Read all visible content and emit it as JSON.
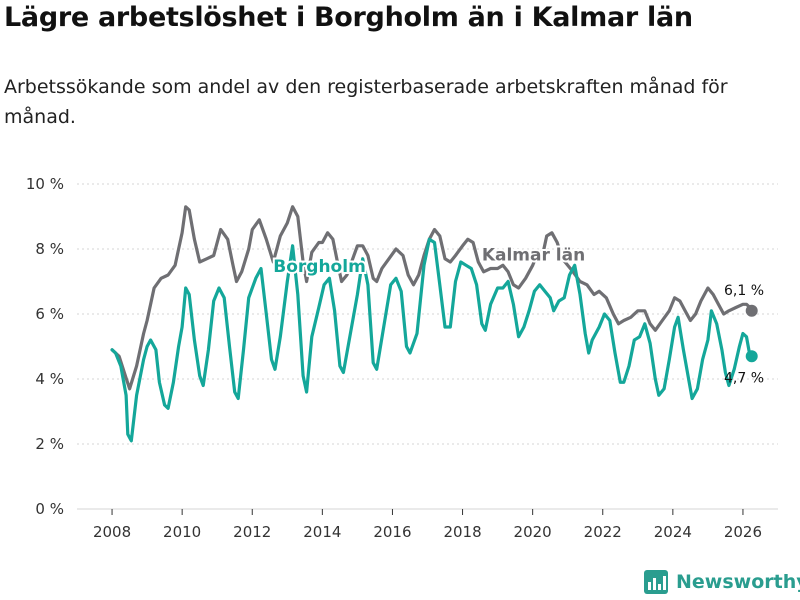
{
  "title": "Lägre arbetslöshet i Borgholm än i Kalmar län",
  "subtitle": "Arbetssökande som andel av den registerbaserade arbetskraften månad för månad.",
  "brand": "Newsworthy",
  "colors": {
    "borgholm": "#14a79a",
    "kalmar": "#6f6f73",
    "grid": "#d6d6d6",
    "axis": "#333333"
  },
  "chart_data": {
    "type": "line",
    "title": "Lägre arbetslöshet i Borgholm än i Kalmar län",
    "ylim": [
      0,
      10
    ],
    "xlim": [
      2007,
      2027
    ],
    "y_ticks": [
      0,
      2,
      4,
      6,
      8,
      10
    ],
    "y_tick_labels": [
      "0 %",
      "2 %",
      "4 %",
      "6 %",
      "8 %",
      "10 %"
    ],
    "x_ticks": [
      2008,
      2010,
      2012,
      2014,
      2016,
      2018,
      2020,
      2022,
      2024,
      2026
    ],
    "x_tick_labels": [
      "2008",
      "2010",
      "2012",
      "2014",
      "2016",
      "2018",
      "2020",
      "2022",
      "2024",
      "2026"
    ],
    "grid": true,
    "series": [
      {
        "name": "Kalmar län",
        "label": "Kalmar län",
        "end_label": "6,1 %",
        "last_value": 6.1,
        "last_x": 2026.25,
        "points": [
          [
            2008.0,
            4.9
          ],
          [
            2008.2,
            4.7
          ],
          [
            2008.35,
            4.2
          ],
          [
            2008.5,
            3.7
          ],
          [
            2008.7,
            4.4
          ],
          [
            2008.9,
            5.4
          ],
          [
            2009.0,
            5.8
          ],
          [
            2009.2,
            6.8
          ],
          [
            2009.4,
            7.1
          ],
          [
            2009.6,
            7.2
          ],
          [
            2009.8,
            7.5
          ],
          [
            2010.0,
            8.5
          ],
          [
            2010.1,
            9.3
          ],
          [
            2010.2,
            9.2
          ],
          [
            2010.35,
            8.3
          ],
          [
            2010.5,
            7.6
          ],
          [
            2010.7,
            7.7
          ],
          [
            2010.9,
            7.8
          ],
          [
            2011.1,
            8.6
          ],
          [
            2011.3,
            8.3
          ],
          [
            2011.45,
            7.5
          ],
          [
            2011.55,
            7.0
          ],
          [
            2011.7,
            7.3
          ],
          [
            2011.9,
            8.0
          ],
          [
            2012.0,
            8.6
          ],
          [
            2012.2,
            8.9
          ],
          [
            2012.4,
            8.3
          ],
          [
            2012.6,
            7.6
          ],
          [
            2012.8,
            8.4
          ],
          [
            2013.0,
            8.8
          ],
          [
            2013.15,
            9.3
          ],
          [
            2013.3,
            9.0
          ],
          [
            2013.45,
            7.6
          ],
          [
            2013.55,
            7.0
          ],
          [
            2013.7,
            7.9
          ],
          [
            2013.9,
            8.2
          ],
          [
            2014.0,
            8.2
          ],
          [
            2014.15,
            8.5
          ],
          [
            2014.3,
            8.3
          ],
          [
            2014.45,
            7.5
          ],
          [
            2014.55,
            7.0
          ],
          [
            2014.7,
            7.2
          ],
          [
            2014.9,
            7.8
          ],
          [
            2015.0,
            8.1
          ],
          [
            2015.15,
            8.1
          ],
          [
            2015.3,
            7.8
          ],
          [
            2015.45,
            7.1
          ],
          [
            2015.55,
            7.0
          ],
          [
            2015.7,
            7.4
          ],
          [
            2015.9,
            7.7
          ],
          [
            2016.1,
            8.0
          ],
          [
            2016.3,
            7.8
          ],
          [
            2016.45,
            7.2
          ],
          [
            2016.6,
            6.9
          ],
          [
            2016.75,
            7.2
          ],
          [
            2016.9,
            7.8
          ],
          [
            2017.05,
            8.3
          ],
          [
            2017.2,
            8.6
          ],
          [
            2017.35,
            8.4
          ],
          [
            2017.5,
            7.7
          ],
          [
            2017.65,
            7.6
          ],
          [
            2017.8,
            7.8
          ],
          [
            2018.0,
            8.1
          ],
          [
            2018.15,
            8.3
          ],
          [
            2018.3,
            8.2
          ],
          [
            2018.45,
            7.6
          ],
          [
            2018.6,
            7.3
          ],
          [
            2018.8,
            7.4
          ],
          [
            2019.0,
            7.4
          ],
          [
            2019.15,
            7.5
          ],
          [
            2019.3,
            7.3
          ],
          [
            2019.45,
            6.9
          ],
          [
            2019.6,
            6.8
          ],
          [
            2019.8,
            7.1
          ],
          [
            2020.0,
            7.5
          ],
          [
            2020.15,
            7.9
          ],
          [
            2020.3,
            7.9
          ],
          [
            2020.4,
            8.4
          ],
          [
            2020.55,
            8.5
          ],
          [
            2020.7,
            8.2
          ],
          [
            2020.85,
            7.7
          ],
          [
            2021.0,
            7.5
          ],
          [
            2021.15,
            7.3
          ],
          [
            2021.35,
            7.0
          ],
          [
            2021.55,
            6.9
          ],
          [
            2021.75,
            6.6
          ],
          [
            2021.9,
            6.7
          ],
          [
            2022.1,
            6.5
          ],
          [
            2022.3,
            6.0
          ],
          [
            2022.45,
            5.7
          ],
          [
            2022.6,
            5.8
          ],
          [
            2022.8,
            5.9
          ],
          [
            2023.0,
            6.1
          ],
          [
            2023.2,
            6.1
          ],
          [
            2023.35,
            5.7
          ],
          [
            2023.5,
            5.5
          ],
          [
            2023.7,
            5.8
          ],
          [
            2023.9,
            6.1
          ],
          [
            2024.05,
            6.5
          ],
          [
            2024.2,
            6.4
          ],
          [
            2024.35,
            6.1
          ],
          [
            2024.5,
            5.8
          ],
          [
            2024.65,
            6.0
          ],
          [
            2024.8,
            6.4
          ],
          [
            2025.0,
            6.8
          ],
          [
            2025.15,
            6.6
          ],
          [
            2025.3,
            6.3
          ],
          [
            2025.45,
            6.0
          ],
          [
            2025.6,
            6.1
          ],
          [
            2025.8,
            6.2
          ],
          [
            2026.0,
            6.3
          ],
          [
            2026.1,
            6.3
          ],
          [
            2026.2,
            6.2
          ]
        ]
      },
      {
        "name": "Borgholm",
        "label": "Borgholm",
        "end_label": "4,7 %",
        "last_value": 4.7,
        "last_x": 2026.25,
        "points": [
          [
            2008.0,
            4.9
          ],
          [
            2008.1,
            4.8
          ],
          [
            2008.25,
            4.4
          ],
          [
            2008.4,
            3.5
          ],
          [
            2008.45,
            2.3
          ],
          [
            2008.55,
            2.1
          ],
          [
            2008.7,
            3.5
          ],
          [
            2008.9,
            4.6
          ],
          [
            2009.0,
            5.0
          ],
          [
            2009.1,
            5.2
          ],
          [
            2009.25,
            4.9
          ],
          [
            2009.35,
            3.9
          ],
          [
            2009.5,
            3.2
          ],
          [
            2009.6,
            3.1
          ],
          [
            2009.75,
            3.9
          ],
          [
            2009.9,
            5.0
          ],
          [
            2010.0,
            5.6
          ],
          [
            2010.1,
            6.8
          ],
          [
            2010.2,
            6.6
          ],
          [
            2010.35,
            5.2
          ],
          [
            2010.5,
            4.1
          ],
          [
            2010.6,
            3.8
          ],
          [
            2010.75,
            4.9
          ],
          [
            2010.9,
            6.4
          ],
          [
            2011.05,
            6.8
          ],
          [
            2011.2,
            6.5
          ],
          [
            2011.35,
            5.0
          ],
          [
            2011.5,
            3.6
          ],
          [
            2011.6,
            3.4
          ],
          [
            2011.75,
            4.9
          ],
          [
            2011.9,
            6.5
          ],
          [
            2012.1,
            7.1
          ],
          [
            2012.25,
            7.4
          ],
          [
            2012.4,
            6.0
          ],
          [
            2012.55,
            4.6
          ],
          [
            2012.65,
            4.3
          ],
          [
            2012.8,
            5.3
          ],
          [
            2013.0,
            7.0
          ],
          [
            2013.15,
            8.1
          ],
          [
            2013.3,
            6.6
          ],
          [
            2013.45,
            4.1
          ],
          [
            2013.55,
            3.6
          ],
          [
            2013.7,
            5.3
          ],
          [
            2013.9,
            6.2
          ],
          [
            2014.05,
            6.9
          ],
          [
            2014.2,
            7.1
          ],
          [
            2014.35,
            6.1
          ],
          [
            2014.5,
            4.4
          ],
          [
            2014.6,
            4.2
          ],
          [
            2014.8,
            5.4
          ],
          [
            2015.0,
            6.6
          ],
          [
            2015.15,
            7.7
          ],
          [
            2015.3,
            6.9
          ],
          [
            2015.45,
            4.5
          ],
          [
            2015.55,
            4.3
          ],
          [
            2015.75,
            5.6
          ],
          [
            2015.95,
            6.9
          ],
          [
            2016.1,
            7.1
          ],
          [
            2016.25,
            6.7
          ],
          [
            2016.4,
            5.0
          ],
          [
            2016.5,
            4.8
          ],
          [
            2016.7,
            5.4
          ],
          [
            2016.9,
            7.5
          ],
          [
            2017.05,
            8.3
          ],
          [
            2017.2,
            8.2
          ],
          [
            2017.35,
            6.9
          ],
          [
            2017.5,
            5.6
          ],
          [
            2017.65,
            5.6
          ],
          [
            2017.8,
            7.0
          ],
          [
            2017.95,
            7.6
          ],
          [
            2018.1,
            7.5
          ],
          [
            2018.25,
            7.4
          ],
          [
            2018.4,
            6.9
          ],
          [
            2018.55,
            5.7
          ],
          [
            2018.65,
            5.5
          ],
          [
            2018.8,
            6.3
          ],
          [
            2019.0,
            6.8
          ],
          [
            2019.15,
            6.8
          ],
          [
            2019.3,
            7.0
          ],
          [
            2019.45,
            6.3
          ],
          [
            2019.6,
            5.3
          ],
          [
            2019.75,
            5.6
          ],
          [
            2019.9,
            6.1
          ],
          [
            2020.05,
            6.7
          ],
          [
            2020.2,
            6.9
          ],
          [
            2020.35,
            6.7
          ],
          [
            2020.5,
            6.5
          ],
          [
            2020.6,
            6.1
          ],
          [
            2020.75,
            6.4
          ],
          [
            2020.9,
            6.5
          ],
          [
            2021.05,
            7.2
          ],
          [
            2021.2,
            7.5
          ],
          [
            2021.35,
            6.6
          ],
          [
            2021.5,
            5.4
          ],
          [
            2021.6,
            4.8
          ],
          [
            2021.7,
            5.2
          ],
          [
            2021.9,
            5.6
          ],
          [
            2022.05,
            6.0
          ],
          [
            2022.2,
            5.8
          ],
          [
            2022.35,
            4.8
          ],
          [
            2022.5,
            3.9
          ],
          [
            2022.6,
            3.9
          ],
          [
            2022.75,
            4.4
          ],
          [
            2022.9,
            5.2
          ],
          [
            2023.05,
            5.3
          ],
          [
            2023.2,
            5.7
          ],
          [
            2023.35,
            5.1
          ],
          [
            2023.5,
            4.0
          ],
          [
            2023.6,
            3.5
          ],
          [
            2023.75,
            3.7
          ],
          [
            2023.9,
            4.6
          ],
          [
            2024.05,
            5.6
          ],
          [
            2024.15,
            5.9
          ],
          [
            2024.3,
            4.9
          ],
          [
            2024.45,
            4.0
          ],
          [
            2024.55,
            3.4
          ],
          [
            2024.7,
            3.7
          ],
          [
            2024.85,
            4.6
          ],
          [
            2025.0,
            5.2
          ],
          [
            2025.1,
            6.1
          ],
          [
            2025.25,
            5.7
          ],
          [
            2025.4,
            4.9
          ],
          [
            2025.5,
            4.2
          ],
          [
            2025.6,
            3.8
          ],
          [
            2025.75,
            4.3
          ],
          [
            2025.9,
            5.0
          ],
          [
            2026.0,
            5.4
          ],
          [
            2026.1,
            5.3
          ],
          [
            2026.2,
            4.7
          ]
        ]
      }
    ]
  }
}
